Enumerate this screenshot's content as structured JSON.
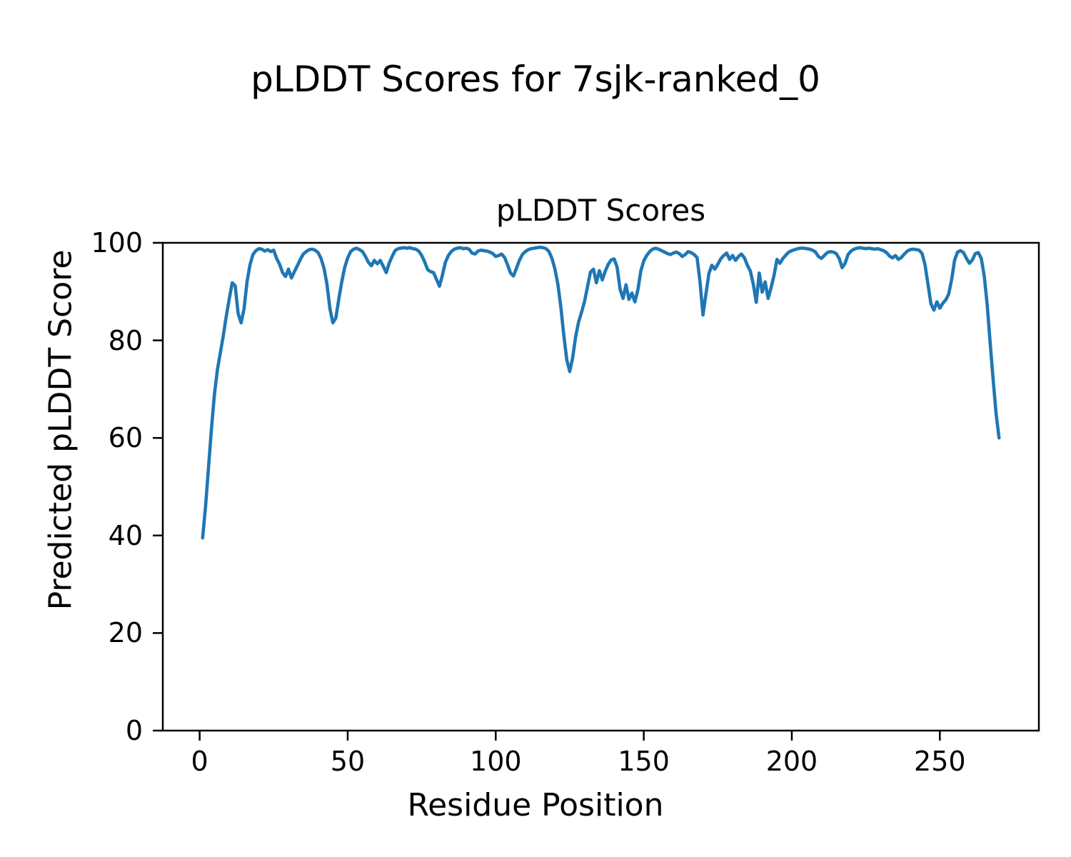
{
  "figure": {
    "suptitle": "pLDDT Scores for 7sjk-ranked_0"
  },
  "chart_data": {
    "type": "line",
    "title": "pLDDT Scores",
    "xlabel": "Residue Position",
    "ylabel": "Predicted pLDDT Score",
    "xlim": [
      -12.45,
      283.45
    ],
    "ylim": [
      0,
      100
    ],
    "x_ticks": [
      0,
      50,
      100,
      150,
      200,
      250
    ],
    "y_ticks": [
      0,
      20,
      40,
      60,
      80,
      100
    ],
    "grid": false,
    "legend": null,
    "line_color": "#1f77b4",
    "line_width": 4.6,
    "x_start": 1,
    "x_step": 1,
    "series": [
      {
        "name": "pLDDT",
        "values": [
          39.5,
          46,
          54,
          62,
          69,
          74,
          77.5,
          81,
          85,
          88.5,
          91.8,
          91.2,
          85.5,
          83.6,
          86.5,
          92,
          95.5,
          97.6,
          98.4,
          98.8,
          98.7,
          98.3,
          98.6,
          98.2,
          98.5,
          96.8,
          95.6,
          93.9,
          93.1,
          94.6,
          92.8,
          94.1,
          95.3,
          96.6,
          97.7,
          98.2,
          98.6,
          98.7,
          98.5,
          98,
          96.8,
          94.8,
          91.5,
          86.5,
          83.6,
          84.6,
          88.5,
          92,
          95,
          96.9,
          98.2,
          98.7,
          98.9,
          98.6,
          98.2,
          97.2,
          96,
          95.3,
          96.4,
          95.7,
          96.4,
          95.2,
          93.9,
          95.8,
          97.2,
          98.4,
          98.8,
          98.9,
          99,
          98.9,
          99,
          98.8,
          98.7,
          98.3,
          97.4,
          96.1,
          94.5,
          94.1,
          93.9,
          92.5,
          91.1,
          93.4,
          96,
          97.4,
          98.2,
          98.7,
          98.9,
          99,
          98.8,
          98.9,
          98.7,
          97.9,
          97.7,
          98.3,
          98.5,
          98.4,
          98.3,
          98.1,
          97.8,
          97.2,
          97.4,
          97.7,
          97,
          95.5,
          93.8,
          93.2,
          94.8,
          96.4,
          97.6,
          98.2,
          98.6,
          98.8,
          98.9,
          99,
          99.1,
          99,
          98.8,
          98.2,
          96.8,
          94.6,
          91.5,
          86.8,
          81,
          76,
          73.6,
          76.5,
          80.8,
          83.8,
          85.8,
          88,
          91,
          94,
          94.6,
          91.8,
          94.3,
          92.4,
          94.2,
          95.6,
          96.5,
          96.7,
          95,
          90.5,
          88.6,
          91.4,
          88.4,
          89.7,
          87.9,
          90.3,
          94.2,
          96.3,
          97.4,
          98.2,
          98.7,
          98.9,
          98.7,
          98.4,
          98.1,
          97.8,
          97.6,
          97.9,
          98.1,
          97.8,
          97.2,
          97.6,
          98.2,
          98,
          97.6,
          97,
          92,
          85.2,
          89.5,
          93.7,
          95.4,
          94.6,
          95.6,
          96.7,
          97.4,
          97.9,
          96.6,
          97.4,
          96.4,
          97.2,
          97.7,
          96.9,
          95.4,
          94.2,
          91.5,
          87.8,
          93.8,
          89.9,
          92,
          88.6,
          90.8,
          93.3,
          96.6,
          95.8,
          96.8,
          97.5,
          98.1,
          98.4,
          98.6,
          98.8,
          98.9,
          98.9,
          98.8,
          98.7,
          98.5,
          98.1,
          97.2,
          96.8,
          97.4,
          98,
          98.2,
          98.1,
          97.8,
          96.8,
          94.9,
          95.8,
          97.6,
          98.3,
          98.7,
          98.9,
          99,
          98.9,
          98.8,
          98.9,
          98.8,
          98.7,
          98.8,
          98.6,
          98.4,
          98,
          97.3,
          96.9,
          97.4,
          96.6,
          97,
          97.7,
          98.3,
          98.6,
          98.7,
          98.6,
          98.5,
          97.8,
          95.5,
          91.5,
          87.5,
          86.2,
          87.9,
          86.6,
          87.6,
          88.3,
          89.5,
          92.5,
          96.5,
          98.1,
          98.4,
          98,
          96.8,
          95.8,
          96.5,
          97.8,
          98,
          96.8,
          93.2,
          87.3,
          79.5,
          72,
          65,
          60
        ]
      }
    ],
    "axis_color": "#000000",
    "background_color": "#ffffff"
  }
}
